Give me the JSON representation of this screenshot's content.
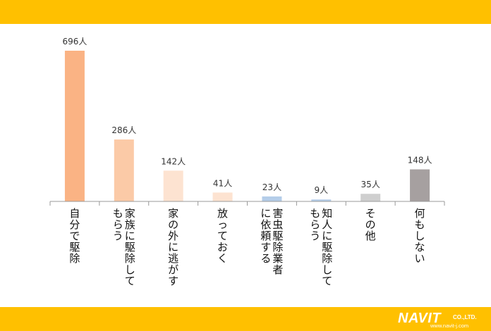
{
  "chart_data": {
    "type": "bar",
    "categories": [
      "自分で駆除",
      "家族に駆除してもらう",
      "家の外に逃がす",
      "放っておく",
      "害虫駆除業者に依頼する",
      "知人に駆除してもらう",
      "その他",
      "何もしない"
    ],
    "category_lines": [
      [
        "自分で駆除"
      ],
      [
        "家族に駆除して",
        "もらう"
      ],
      [
        "家の外に逃がす"
      ],
      [
        "放っておく"
      ],
      [
        "害虫駆除業者",
        "に依頼する"
      ],
      [
        "知人に駆除して",
        "もらう"
      ],
      [
        "その他"
      ],
      [
        "何もしない"
      ]
    ],
    "values": [
      696,
      286,
      142,
      41,
      23,
      9,
      35,
      148
    ],
    "value_labels": [
      "696人",
      "286人",
      "142人",
      "41人",
      "23人",
      "9人",
      "35人",
      "148人"
    ],
    "colors": [
      "#fab384",
      "#fbcaa7",
      "#fde3d1",
      "#fde3d1",
      "#b4cde9",
      "#b4cde9",
      "#cfcfcf",
      "#a6a0a0"
    ],
    "ylim": [
      0,
      696
    ],
    "grid": false
  },
  "brand": {
    "logo_text": "NAVIT",
    "logo_suffix": "CO.,LTD.",
    "url": "www.navit-j.com",
    "band_color": "#ffc000"
  }
}
